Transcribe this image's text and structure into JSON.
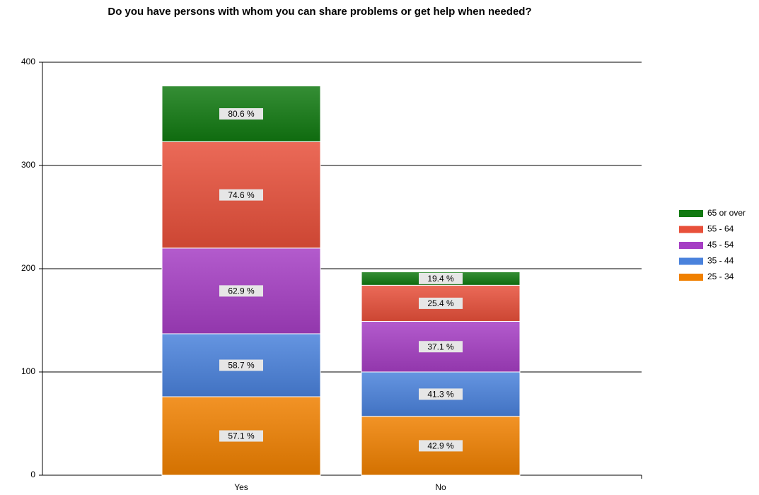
{
  "chart_data": {
    "type": "stacked_bar",
    "title": "Do you have persons with whom you can share problems or get help when needed?",
    "categories": [
      "Yes",
      "No"
    ],
    "series": [
      {
        "name": "25 - 34",
        "color": "#f08000",
        "values": [
          76,
          57
        ],
        "shares": [
          "57.1 %",
          "42.9 %"
        ]
      },
      {
        "name": "35 - 44",
        "color": "#4a82dc",
        "values": [
          61,
          43
        ],
        "shares": [
          "58.7 %",
          "41.3 %"
        ]
      },
      {
        "name": "45 - 54",
        "color": "#a63ec4",
        "values": [
          83,
          49
        ],
        "shares": [
          "62.9 %",
          "37.1 %"
        ]
      },
      {
        "name": "55 - 64",
        "color": "#e8503a",
        "values": [
          103,
          35
        ],
        "shares": [
          "74.6 %",
          "25.4 %"
        ]
      },
      {
        "name": "65 or over",
        "color": "#117a11",
        "values": [
          54,
          13
        ],
        "shares": [
          "80.6 %",
          "19.4 %"
        ]
      }
    ],
    "ylim": [
      0,
      400
    ],
    "yticks": [
      0,
      100,
      200,
      300,
      400
    ],
    "grid": true,
    "legend": "right"
  }
}
